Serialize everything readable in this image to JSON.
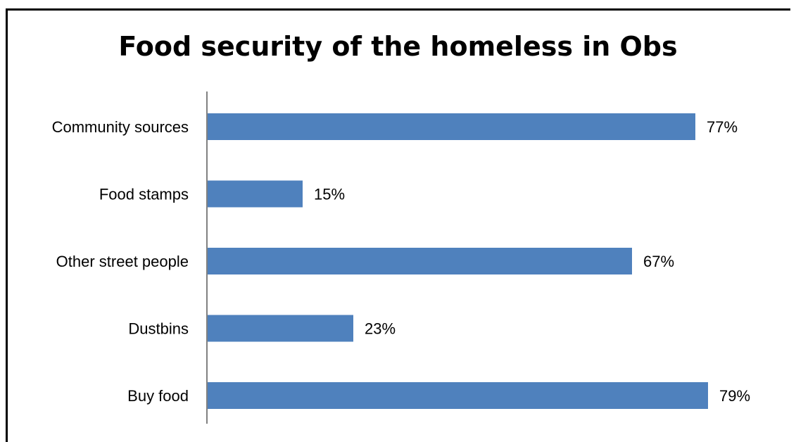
{
  "chart_data": {
    "type": "bar",
    "orientation": "horizontal",
    "title": "Food security of the homeless in Obs",
    "categories": [
      "Community sources",
      "Food stamps",
      "Other street people",
      "Dustbins",
      "Buy food"
    ],
    "values": [
      77,
      15,
      67,
      23,
      79
    ],
    "data_labels": [
      "77%",
      "15%",
      "67%",
      "23%",
      "79%"
    ],
    "xlim": [
      0,
      100
    ],
    "grid": false,
    "legend": "none",
    "bar_color": "#4f81bd",
    "axis_color": "#808080"
  }
}
